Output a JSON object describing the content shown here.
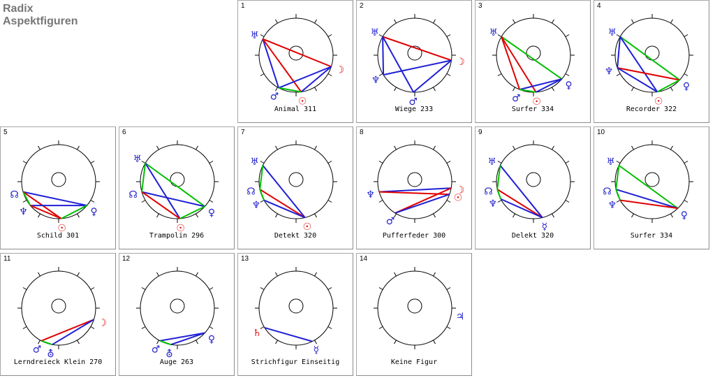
{
  "header": {
    "title": "Radix",
    "subtitle": "Aspektfiguren"
  },
  "colors": {
    "red": "#e00000",
    "blue": "#1f1fd6",
    "green": "#00c000",
    "planet_blue": "#2222cc",
    "planet_red": "#dd1010"
  },
  "panels": [
    {
      "num": "1",
      "label": "Animal 311",
      "planets": [
        {
          "glyph": "♅",
          "angle": -154,
          "color": "blue"
        },
        {
          "glyph": "☽",
          "angle": 18,
          "color": "red"
        },
        {
          "glyph": "♂",
          "angle": 118,
          "color": "blue"
        },
        {
          "glyph": "☉",
          "angle": 82,
          "color": "red"
        }
      ],
      "lines": [
        [
          "♅",
          "☽",
          "red"
        ],
        [
          "♅",
          "♂",
          "blue"
        ],
        [
          "♅",
          "☉",
          "red"
        ],
        [
          "☽",
          "♂",
          "blue"
        ],
        [
          "☽",
          "☉",
          "blue"
        ],
        [
          "♂",
          "☉",
          "green"
        ]
      ]
    },
    {
      "num": "2",
      "label": "Wiege 233",
      "planets": [
        {
          "glyph": "♅",
          "angle": -150,
          "color": "blue"
        },
        {
          "glyph": "☽",
          "angle": 8,
          "color": "red"
        },
        {
          "glyph": "♆",
          "angle": 148,
          "color": "blue"
        },
        {
          "glyph": "♂",
          "angle": 92,
          "color": "blue"
        }
      ],
      "lines": [
        [
          "♅",
          "☽",
          "red"
        ],
        [
          "♅",
          "♆",
          "blue"
        ],
        [
          "♅",
          "♂",
          "blue"
        ],
        [
          "☽",
          "♆",
          "blue"
        ],
        [
          "☽",
          "♂",
          "blue"
        ]
      ]
    },
    {
      "num": "3",
      "label": "Surfer 334",
      "planets": [
        {
          "glyph": "♅",
          "angle": -150,
          "color": "blue"
        },
        {
          "glyph": "♀",
          "angle": 40,
          "color": "blue"
        },
        {
          "glyph": "♂",
          "angle": 112,
          "color": "blue"
        },
        {
          "glyph": "☉",
          "angle": 86,
          "color": "red"
        }
      ],
      "lines": [
        [
          "♅",
          "♀",
          "green"
        ],
        [
          "♅",
          "♂",
          "red"
        ],
        [
          "♅",
          "☉",
          "red"
        ],
        [
          "♀",
          "♂",
          "blue"
        ],
        [
          "♀",
          "☉",
          "blue"
        ],
        [
          "♂",
          "☉",
          "green"
        ]
      ]
    },
    {
      "num": "4",
      "label": "Recorder 322",
      "planets": [
        {
          "glyph": "♅",
          "angle": -150,
          "color": "blue"
        },
        {
          "glyph": "♆",
          "angle": 160,
          "color": "blue"
        },
        {
          "glyph": "♀",
          "angle": 42,
          "color": "blue"
        },
        {
          "glyph": "☉",
          "angle": 82,
          "color": "red"
        }
      ],
      "lines": [
        [
          "♅",
          "♀",
          "green"
        ],
        [
          "♅",
          "♆",
          "blue"
        ],
        [
          "♅",
          "☉",
          "blue"
        ],
        [
          "♆",
          "♀",
          "red"
        ],
        [
          "♆",
          "☉",
          "blue"
        ],
        [
          "♀",
          "☉",
          "green"
        ]
      ]
    },
    {
      "num": "5",
      "label": "Schild 301",
      "planets": [
        {
          "glyph": "☊",
          "angle": 164,
          "color": "blue"
        },
        {
          "glyph": "♆",
          "angle": 140,
          "color": "blue"
        },
        {
          "glyph": "♀",
          "angle": 40,
          "color": "blue"
        },
        {
          "glyph": "☉",
          "angle": 86,
          "color": "red"
        }
      ],
      "lines": [
        [
          "☊",
          "♀",
          "blue"
        ],
        [
          "☊",
          "☉",
          "red"
        ],
        [
          "♆",
          "♀",
          "blue"
        ],
        [
          "♆",
          "☉",
          "red"
        ],
        [
          "☊",
          "♆",
          "green"
        ],
        [
          "♀",
          "☉",
          "green"
        ]
      ]
    },
    {
      "num": "6",
      "label": "Trampolin 296",
      "planets": [
        {
          "glyph": "♅",
          "angle": -150,
          "color": "blue"
        },
        {
          "glyph": "☊",
          "angle": 164,
          "color": "blue"
        },
        {
          "glyph": "♀",
          "angle": 42,
          "color": "blue"
        },
        {
          "glyph": "☉",
          "angle": 86,
          "color": "red"
        }
      ],
      "lines": [
        [
          "♅",
          "♀",
          "green"
        ],
        [
          "♅",
          "☉",
          "blue"
        ],
        [
          "☊",
          "♀",
          "blue"
        ],
        [
          "☊",
          "☉",
          "red"
        ],
        [
          "♅",
          "☊",
          "green"
        ],
        [
          "♀",
          "☉",
          "green"
        ]
      ]
    },
    {
      "num": "7",
      "label": "Detekt 320",
      "planets": [
        {
          "glyph": "♅",
          "angle": -154,
          "color": "blue"
        },
        {
          "glyph": "☊",
          "angle": 168,
          "color": "blue"
        },
        {
          "glyph": "♆",
          "angle": 150,
          "color": "blue"
        },
        {
          "glyph": "☉",
          "angle": 76,
          "color": "red"
        }
      ],
      "lines": [
        [
          "♅",
          "☉",
          "blue"
        ],
        [
          "☊",
          "☉",
          "red"
        ],
        [
          "♆",
          "☉",
          "blue"
        ],
        [
          "♅",
          "☊",
          "green"
        ],
        [
          "☊",
          "♆",
          "green"
        ]
      ]
    },
    {
      "num": "8",
      "label": "Pufferfeder 300",
      "planets": [
        {
          "glyph": "☽",
          "angle": 10,
          "color": "red"
        },
        {
          "glyph": "♆",
          "angle": 164,
          "color": "blue"
        },
        {
          "glyph": "♂",
          "angle": 122,
          "color": "blue"
        },
        {
          "glyph": "☉",
          "angle": 20,
          "color": "red"
        }
      ],
      "lines": [
        [
          "☽",
          "♆",
          "blue"
        ],
        [
          "☽",
          "♂",
          "red"
        ],
        [
          "♆",
          "☉",
          "red"
        ],
        [
          "♂",
          "☉",
          "blue"
        ]
      ]
    },
    {
      "num": "9",
      "label": "Delekt 320",
      "planets": [
        {
          "glyph": "♅",
          "angle": -154,
          "color": "blue"
        },
        {
          "glyph": "☊",
          "angle": 168,
          "color": "blue"
        },
        {
          "glyph": "♆",
          "angle": 152,
          "color": "blue"
        },
        {
          "glyph": "☿",
          "angle": 76,
          "color": "blue"
        }
      ],
      "lines": [
        [
          "♅",
          "☿",
          "blue"
        ],
        [
          "☊",
          "☿",
          "red"
        ],
        [
          "♆",
          "☿",
          "blue"
        ],
        [
          "♅",
          "☊",
          "green"
        ],
        [
          "☊",
          "♆",
          "green"
        ]
      ]
    },
    {
      "num": "10",
      "label": "Surfer 334",
      "planets": [
        {
          "glyph": "♅",
          "angle": -154,
          "color": "blue"
        },
        {
          "glyph": "☊",
          "angle": 168,
          "color": "blue"
        },
        {
          "glyph": "♆",
          "angle": 150,
          "color": "blue"
        },
        {
          "glyph": "♀",
          "angle": 46,
          "color": "blue"
        }
      ],
      "lines": [
        [
          "♅",
          "♀",
          "green"
        ],
        [
          "☊",
          "♀",
          "blue"
        ],
        [
          "♆",
          "♀",
          "red"
        ],
        [
          "♅",
          "☊",
          "green"
        ],
        [
          "☊",
          "♆",
          "green"
        ]
      ]
    },
    {
      "num": "11",
      "label": "Lerndreieck Klein 270",
      "planets": [
        {
          "glyph": "☽",
          "angle": 18,
          "color": "red"
        },
        {
          "glyph": "♂",
          "angle": 118,
          "color": "blue"
        },
        {
          "glyph": "⛢",
          "angle": 100,
          "color": "blue"
        }
      ],
      "lines": [
        [
          "☽",
          "♂",
          "red"
        ],
        [
          "☽",
          "⛢",
          "blue"
        ],
        [
          "♂",
          "⛢",
          "green"
        ]
      ]
    },
    {
      "num": "12",
      "label": "Auge 263",
      "planets": [
        {
          "glyph": "♂",
          "angle": 118,
          "color": "blue"
        },
        {
          "glyph": "⛢",
          "angle": 100,
          "color": "blue"
        },
        {
          "glyph": "♀",
          "angle": 42,
          "color": "blue"
        }
      ],
      "lines": [
        [
          "♂",
          "♀",
          "blue"
        ],
        [
          "⛢",
          "♀",
          "blue"
        ],
        [
          "♂",
          "⛢",
          "green"
        ]
      ]
    },
    {
      "num": "13",
      "label": "Strichfigur Einseitig",
      "planets": [
        {
          "glyph": "♄",
          "angle": 148,
          "color": "red"
        },
        {
          "glyph": "☿",
          "angle": 64,
          "color": "blue"
        }
      ],
      "lines": [
        [
          "♄",
          "☿",
          "blue"
        ]
      ]
    },
    {
      "num": "14",
      "label": "Keine Figur",
      "planets": [
        {
          "glyph": "♃",
          "angle": 10,
          "color": "blue"
        }
      ],
      "lines": []
    }
  ]
}
